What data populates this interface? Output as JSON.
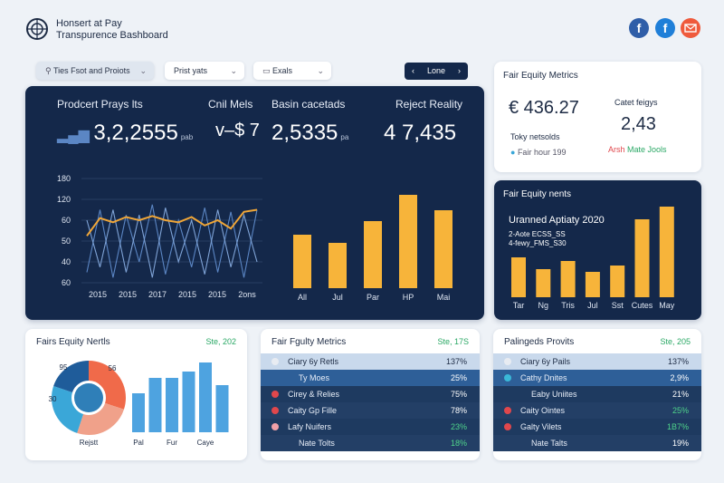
{
  "header": {
    "title_line1": "Honsert at Pay",
    "title_line2": "Transpurence Bashboard"
  },
  "filters": [
    "Ties Fsot and Proiots",
    "Prist yats",
    "Exals"
  ],
  "nav_button": "Lone",
  "kpis": [
    {
      "label": "Prodcert Prays lts",
      "value": "3,2,2555",
      "unit": "pab"
    },
    {
      "label": "Cnil Mels",
      "value": "v–$ 7"
    },
    {
      "label": "Basin cacetads",
      "value": "2,5335",
      "unit": "pa"
    },
    {
      "label": "Reject Reality",
      "value": "4 7,435"
    }
  ],
  "line_chart": {
    "y_labels": [
      180,
      120,
      60,
      50,
      40,
      60
    ],
    "x_labels": [
      "2015",
      "2015",
      "2017",
      "2015",
      "2015",
      "2ons"
    ],
    "series": [
      {
        "color": "#5b86c4",
        "values": [
          10,
          70,
          5,
          65,
          20,
          75,
          8,
          60,
          15,
          72,
          10,
          68,
          5,
          70
        ]
      },
      {
        "color": "#7fa3d6",
        "values": [
          60,
          15,
          70,
          10,
          65,
          5,
          72,
          20,
          60,
          8,
          70,
          15,
          65,
          20
        ]
      },
      {
        "color": "#f0a637",
        "values": [
          45,
          62,
          58,
          63,
          60,
          64,
          60,
          58,
          63,
          55,
          60,
          52,
          68,
          70
        ]
      }
    ]
  },
  "main_bars": {
    "color": "#f7b43a",
    "categories": [
      "All",
      "Jul",
      "Par",
      "HP",
      "Mai"
    ],
    "values": [
      59,
      50,
      74,
      103,
      86
    ]
  },
  "metrics_card": {
    "title": "Fair Equity Metrics",
    "value": "€ 436.27",
    "sub_label": "Catet feigys",
    "sub_value": "2,43",
    "note": "Toky netsolds",
    "legend": "Fair hour 199",
    "tags": [
      "Arsh",
      "Mate Jools"
    ]
  },
  "equity_card": {
    "title": "Fair Equity nents",
    "subtitle": "Uranned Aptiaty 2020",
    "notes": [
      "2-Aote ECSS_SS",
      "4-fewy_FMS_S30"
    ],
    "color": "#f7b43a",
    "categories": [
      "Tar",
      "Ng",
      "Tris",
      "Jul",
      "Sst",
      "Cutes",
      "May"
    ],
    "values": [
      44,
      31,
      40,
      28,
      35,
      86,
      100
    ]
  },
  "bottom_left": {
    "title": "Fairs Equity Nertls",
    "badge": "Ste, 202",
    "donut": {
      "values": [
        30,
        25,
        25,
        20
      ],
      "colors": [
        "#f06a4a",
        "#f0a18a",
        "#3aa7d8",
        "#1f5c9a"
      ],
      "labels": [
        "95",
        "30",
        "56",
        "Rejstt"
      ]
    },
    "bars": {
      "color": "#4ea3e0",
      "categories": [
        "Pal",
        null,
        "Fur",
        null,
        "Caye",
        null
      ],
      "values": [
        43,
        60,
        60,
        67,
        77,
        52
      ]
    }
  },
  "table_mid": {
    "title": "Fair Fgulty Metrics",
    "badge": "Ste, 17S",
    "rows": [
      {
        "dot": "#e8ecf2",
        "label": "Ciary 6y Retls",
        "value": "137%",
        "color": "#1d2b44"
      },
      {
        "dot": null,
        "label": "Ty Moes",
        "value": "25%",
        "color": "#ffffff"
      },
      {
        "dot": "#e0474c",
        "label": "Cirey & Relies",
        "value": "75%",
        "color": "#ffffff"
      },
      {
        "dot": "#e0474c",
        "label": "Caity Gp Fille",
        "value": "78%",
        "color": "#ffffff"
      },
      {
        "dot": "#f0a0a8",
        "label": "Lafy Nuifers",
        "value": "23%",
        "color": "#4fd48a"
      },
      {
        "dot": null,
        "label": "Nate Tolts",
        "value": "18%",
        "color": "#4fd48a"
      }
    ]
  },
  "table_right": {
    "title": "Palingeds Provits",
    "badge": "Ste, 205",
    "rows": [
      {
        "dot": "#e8ecf2",
        "label": "Ciary 6y Pails",
        "value": "137%",
        "color": "#1d2b44"
      },
      {
        "dot": "#3ab8d8",
        "label": "Cathy Dnites",
        "value": "2,9%",
        "color": "#ffffff"
      },
      {
        "dot": null,
        "label": "Eaby Uniites",
        "value": "21%",
        "color": "#ffffff"
      },
      {
        "dot": "#e0474c",
        "label": "Caity Ointes",
        "value": "25%",
        "color": "#4fd48a"
      },
      {
        "dot": "#e0474c",
        "label": "Galty Vilets",
        "value": "1B7%",
        "color": "#4fd48a"
      },
      {
        "dot": null,
        "label": "Nate Talts",
        "value": "19%",
        "color": "#ffffff"
      }
    ]
  }
}
